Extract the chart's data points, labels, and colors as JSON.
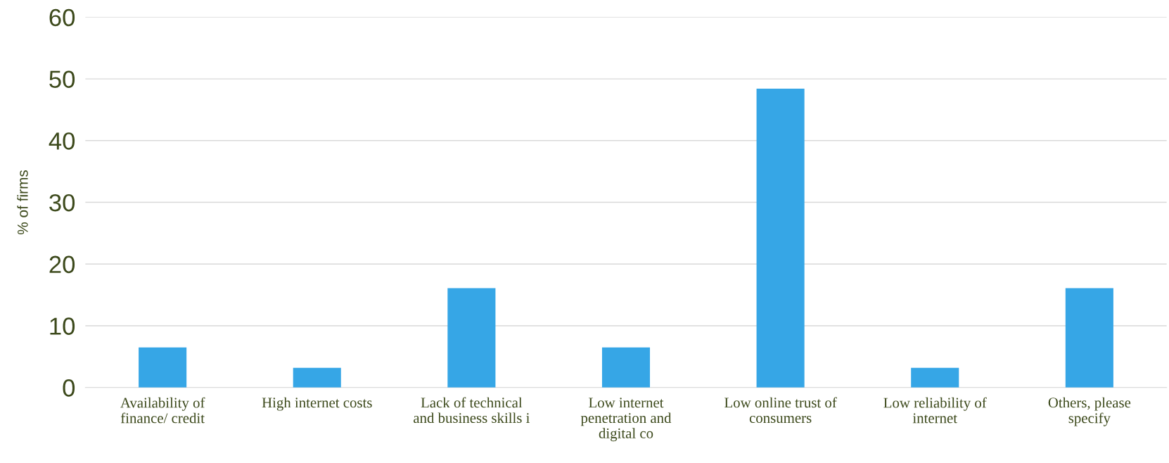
{
  "chart_data": {
    "type": "bar",
    "ylabel": "% of firms",
    "categories": [
      "Availability of\nfinance/ credit",
      "High internet costs",
      "Lack of technical\nand business skills i",
      "Low internet\npenetration and\ndigital co",
      "Low online trust of\nconsumers",
      "Low reliability of\ninternet",
      "Others, please\nspecify"
    ],
    "values": [
      6.5,
      3.2,
      16.1,
      6.5,
      48.4,
      3.2,
      16.1
    ],
    "color": "#36a6e6",
    "ylim": [
      0,
      60
    ],
    "yticks": [
      0,
      10,
      20,
      30,
      40,
      50,
      60
    ],
    "grid": "y",
    "legend": false
  }
}
